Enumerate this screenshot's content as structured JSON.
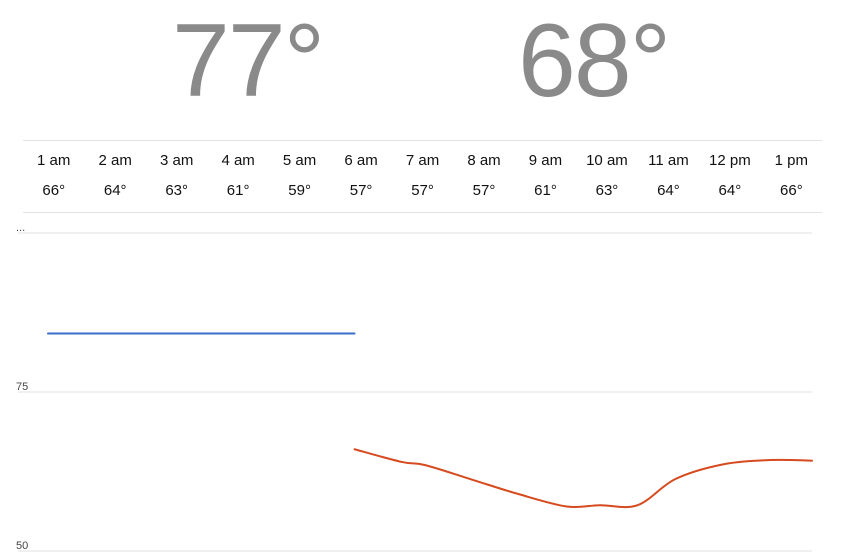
{
  "summary": {
    "high": "77°",
    "low": "68°"
  },
  "hourly": [
    {
      "time": "1 am",
      "temp": "66°"
    },
    {
      "time": "2 am",
      "temp": "64°"
    },
    {
      "time": "3 am",
      "temp": "63°"
    },
    {
      "time": "4 am",
      "temp": "61°"
    },
    {
      "time": "5 am",
      "temp": "59°"
    },
    {
      "time": "6 am",
      "temp": "57°"
    },
    {
      "time": "7 am",
      "temp": "57°"
    },
    {
      "time": "8 am",
      "temp": "57°"
    },
    {
      "time": "9 am",
      "temp": "61°"
    },
    {
      "time": "10 am",
      "temp": "63°"
    },
    {
      "time": "11 am",
      "temp": "64°"
    },
    {
      "time": "12 pm",
      "temp": "64°"
    },
    {
      "time": "1 pm",
      "temp": "66°"
    }
  ],
  "colors": {
    "big_temp": "#8a8a8a",
    "series_blue": "#3a6fc9",
    "series_red": "#d64a1f"
  },
  "chart_data": {
    "type": "line",
    "x": [
      0,
      1,
      2,
      3,
      4,
      5,
      6,
      7,
      8,
      9,
      10,
      11,
      12,
      13
    ],
    "ylim": [
      50,
      100
    ],
    "yticks": [
      {
        "value": 100,
        "label": "..."
      },
      {
        "value": 75,
        "label": "75"
      },
      {
        "value": 50,
        "label": "50"
      }
    ],
    "grid": true,
    "series": [
      {
        "color": "#3a6fc9",
        "points": [
          [
            0.0,
            84.2
          ],
          [
            6.5,
            84.2
          ]
        ]
      },
      {
        "color": "#d64a1f",
        "points": [
          [
            6.5,
            66.0
          ],
          [
            7.5,
            64.0
          ],
          [
            8.0,
            63.5
          ],
          [
            9.0,
            61.2
          ],
          [
            10.0,
            58.9
          ],
          [
            11.0,
            57.0
          ],
          [
            11.7,
            57.2
          ],
          [
            12.5,
            57.2
          ],
          [
            13.3,
            61.3
          ],
          [
            14.3,
            63.6
          ],
          [
            15.3,
            64.3
          ],
          [
            16.2,
            64.2
          ]
        ]
      }
    ]
  }
}
